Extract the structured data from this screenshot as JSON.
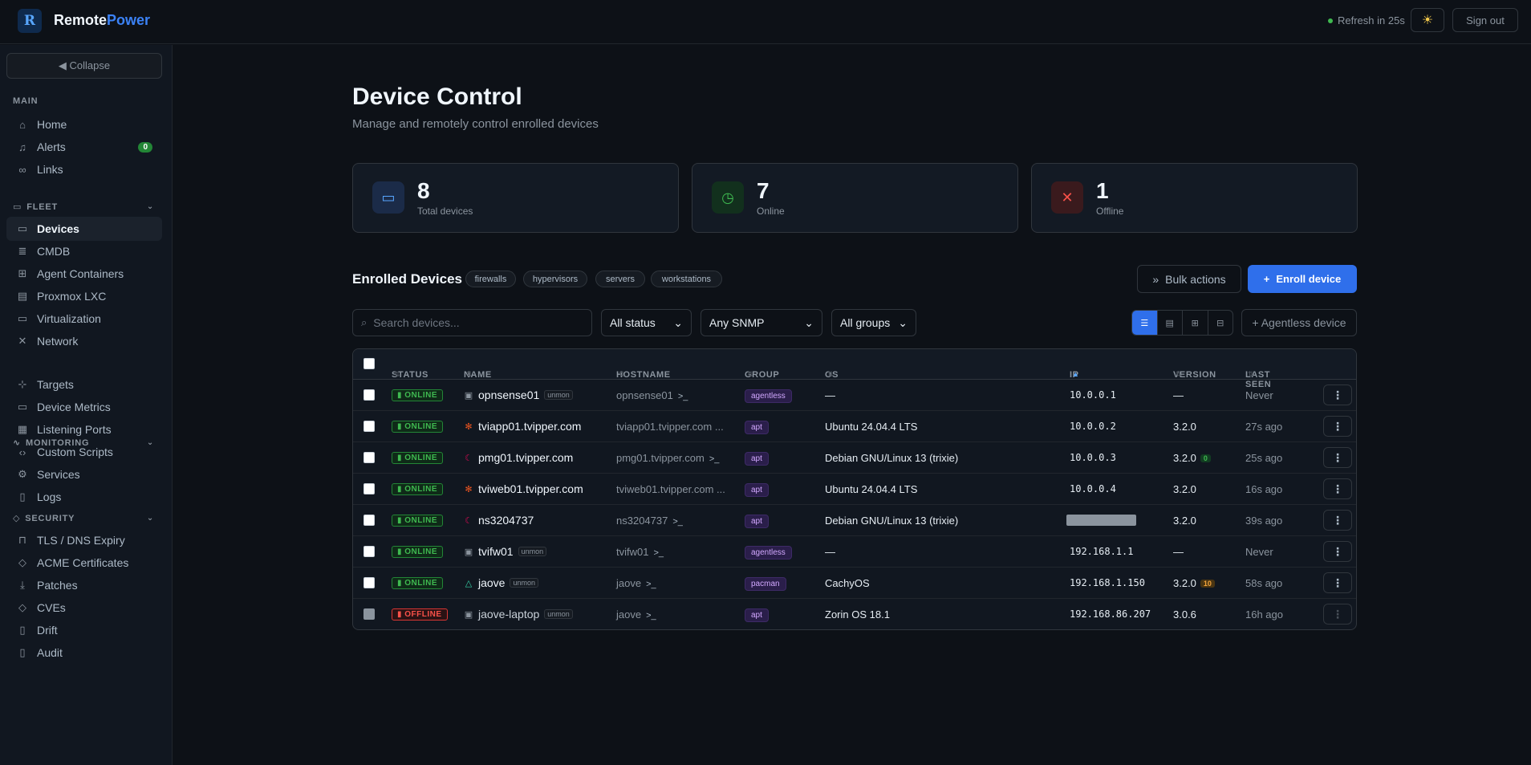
{
  "header": {
    "brand_a": "Remote",
    "brand_b": "Power",
    "refresh": "Refresh in 25s",
    "theme_icon": "sun-icon",
    "signout": "Sign out"
  },
  "sidebar": {
    "collapse": "◀ Collapse",
    "sections": {
      "main": "MAIN",
      "fleet": "FLEET",
      "monitoring": "MONITORING",
      "security": "SECURITY"
    },
    "items": {
      "home": "Home",
      "alerts": "Alerts",
      "alerts_badge": "0",
      "links": "Links",
      "devices": "Devices",
      "cmdb": "CMDB",
      "agent_containers": "Agent Containers",
      "proxmox": "Proxmox LXC",
      "virtualization": "Virtualization",
      "network": "Network",
      "targets": "Targets",
      "device_metrics": "Device Metrics",
      "listening_ports": "Listening Ports",
      "custom_scripts": "Custom Scripts",
      "services": "Services",
      "logs": "Logs",
      "tls": "TLS / DNS Expiry",
      "acme": "ACME Certificates",
      "patches": "Patches",
      "cves": "CVEs",
      "drift": "Drift",
      "audit": "Audit"
    }
  },
  "page": {
    "title": "Device Control",
    "subtitle": "Manage and remotely control enrolled devices"
  },
  "stats": {
    "total": {
      "value": "8",
      "label": "Total devices"
    },
    "online": {
      "value": "7",
      "label": "Online"
    },
    "offline": {
      "value": "1",
      "label": "Offline"
    }
  },
  "enrolled": {
    "title": "Enrolled Devices",
    "chips": [
      "firewalls",
      "hypervisors",
      "servers",
      "workstations"
    ],
    "bulk": "Bulk actions",
    "enroll": "Enroll device",
    "search_placeholder": "Search devices...",
    "status_filter": "All status",
    "snmp_filter": "Any SNMP",
    "group_filter": "All groups",
    "agentless": "+ Agentless device"
  },
  "table": {
    "columns": {
      "status": "STATUS",
      "name": "NAME",
      "hostname": "HOSTNAME",
      "group": "GROUP",
      "os": "OS",
      "ip": "IP",
      "version": "VERSION",
      "last_seen": "LAST SEEN"
    },
    "rows": [
      {
        "status": "ONLINE",
        "name": "opnsense01",
        "unmon": "unmon",
        "hostname": "opnsense01",
        "group": "agentless",
        "os": "—",
        "ip": "10.0.0.1",
        "version": "—",
        "badge": "",
        "last_seen": "Never"
      },
      {
        "status": "ONLINE",
        "name": "tviapp01.tvipper.com",
        "unmon": "",
        "hostname": "tviapp01.tvipper.com ...",
        "group": "apt",
        "os": "Ubuntu 24.04.4 LTS",
        "ip": "10.0.0.2",
        "version": "3.2.0",
        "badge": "",
        "last_seen": "27s ago"
      },
      {
        "status": "ONLINE",
        "name": "pmg01.tvipper.com",
        "unmon": "",
        "hostname": "pmg01.tvipper.com",
        "group": "apt",
        "os": "Debian GNU/Linux 13 (trixie)",
        "ip": "10.0.0.3",
        "version": "3.2.0",
        "badge": "0",
        "last_seen": "25s ago"
      },
      {
        "status": "ONLINE",
        "name": "tviweb01.tvipper.com",
        "unmon": "",
        "hostname": "tviweb01.tvipper.com ...",
        "group": "apt",
        "os": "Ubuntu 24.04.4 LTS",
        "ip": "10.0.0.4",
        "version": "3.2.0",
        "badge": "",
        "last_seen": "16s ago"
      },
      {
        "status": "ONLINE",
        "name": "ns3204737",
        "unmon": "",
        "hostname": "ns3204737",
        "group": "apt",
        "os": "Debian GNU/Linux 13 (trixie)",
        "ip": "",
        "version": "3.2.0",
        "badge": "",
        "last_seen": "39s ago"
      },
      {
        "status": "ONLINE",
        "name": "tvifw01",
        "unmon": "unmon",
        "hostname": "tvifw01",
        "group": "agentless",
        "os": "—",
        "ip": "192.168.1.1",
        "version": "—",
        "badge": "",
        "last_seen": "Never"
      },
      {
        "status": "ONLINE",
        "name": "jaove",
        "unmon": "unmon",
        "hostname": "jaove",
        "group": "pacman",
        "os": "CachyOS",
        "ip": "192.168.1.150",
        "version": "3.2.0",
        "badge": "10",
        "last_seen": "58s ago"
      },
      {
        "status": "OFFLINE",
        "name": "jaove-laptop",
        "unmon": "unmon",
        "hostname": "jaove",
        "group": "apt",
        "os": "Zorin OS 18.1",
        "ip": "192.168.86.207",
        "version": "3.0.6",
        "badge": "",
        "last_seen": "16h ago"
      }
    ]
  }
}
